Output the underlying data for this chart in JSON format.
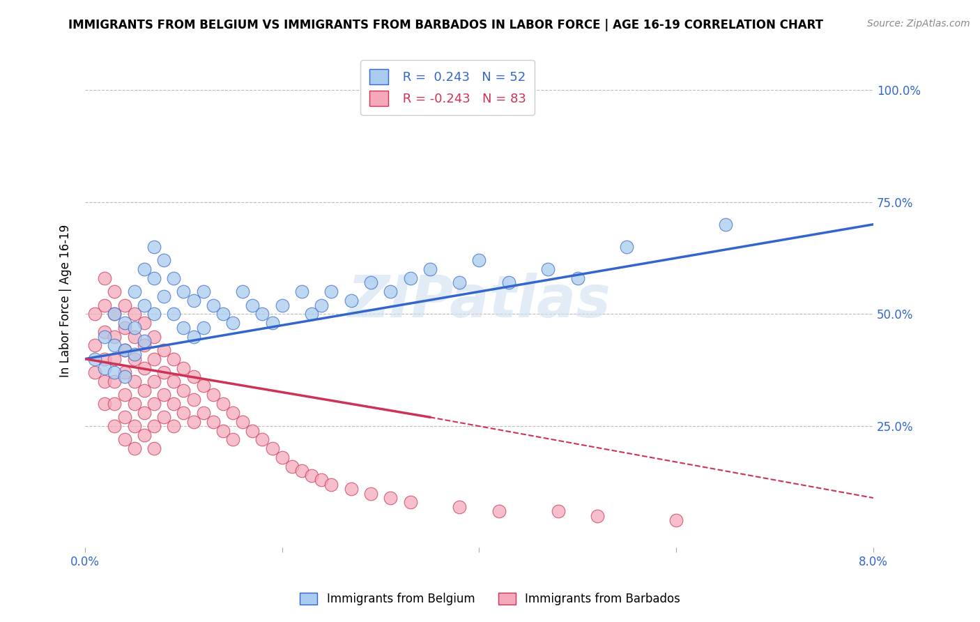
{
  "title": "IMMIGRANTS FROM BELGIUM VS IMMIGRANTS FROM BARBADOS IN LABOR FORCE | AGE 16-19 CORRELATION CHART",
  "source_text": "Source: ZipAtlas.com",
  "ylabel": "In Labor Force | Age 16-19",
  "xlim": [
    0.0,
    0.08
  ],
  "ylim": [
    -0.02,
    1.08
  ],
  "belgium_color": "#aaccee",
  "barbados_color": "#f5aabb",
  "belgium_line_color": "#3366cc",
  "barbados_line_color": "#cc3355",
  "belgium_R": 0.243,
  "belgium_N": 52,
  "barbados_R": -0.243,
  "barbados_N": 83,
  "watermark": "ZIPatlas",
  "background_color": "#ffffff",
  "grid_color": "#bbbbbb",
  "belgium_x": [
    0.001,
    0.002,
    0.002,
    0.003,
    0.003,
    0.003,
    0.004,
    0.004,
    0.004,
    0.005,
    0.005,
    0.005,
    0.006,
    0.006,
    0.006,
    0.007,
    0.007,
    0.007,
    0.008,
    0.008,
    0.009,
    0.009,
    0.01,
    0.01,
    0.011,
    0.011,
    0.012,
    0.012,
    0.013,
    0.014,
    0.015,
    0.016,
    0.017,
    0.018,
    0.019,
    0.02,
    0.022,
    0.023,
    0.024,
    0.025,
    0.027,
    0.029,
    0.031,
    0.033,
    0.035,
    0.038,
    0.04,
    0.043,
    0.047,
    0.05,
    0.055,
    0.065
  ],
  "belgium_y": [
    0.4,
    0.45,
    0.38,
    0.5,
    0.43,
    0.37,
    0.48,
    0.42,
    0.36,
    0.55,
    0.47,
    0.41,
    0.6,
    0.52,
    0.44,
    0.65,
    0.58,
    0.5,
    0.62,
    0.54,
    0.58,
    0.5,
    0.55,
    0.47,
    0.53,
    0.45,
    0.55,
    0.47,
    0.52,
    0.5,
    0.48,
    0.55,
    0.52,
    0.5,
    0.48,
    0.52,
    0.55,
    0.5,
    0.52,
    0.55,
    0.53,
    0.57,
    0.55,
    0.58,
    0.6,
    0.57,
    0.62,
    0.57,
    0.6,
    0.58,
    0.65,
    0.7
  ],
  "barbados_x": [
    0.001,
    0.001,
    0.001,
    0.002,
    0.002,
    0.002,
    0.002,
    0.002,
    0.002,
    0.003,
    0.003,
    0.003,
    0.003,
    0.003,
    0.003,
    0.003,
    0.004,
    0.004,
    0.004,
    0.004,
    0.004,
    0.004,
    0.004,
    0.005,
    0.005,
    0.005,
    0.005,
    0.005,
    0.005,
    0.005,
    0.006,
    0.006,
    0.006,
    0.006,
    0.006,
    0.006,
    0.007,
    0.007,
    0.007,
    0.007,
    0.007,
    0.007,
    0.008,
    0.008,
    0.008,
    0.008,
    0.009,
    0.009,
    0.009,
    0.009,
    0.01,
    0.01,
    0.01,
    0.011,
    0.011,
    0.011,
    0.012,
    0.012,
    0.013,
    0.013,
    0.014,
    0.014,
    0.015,
    0.015,
    0.016,
    0.017,
    0.018,
    0.019,
    0.02,
    0.021,
    0.022,
    0.023,
    0.024,
    0.025,
    0.027,
    0.029,
    0.031,
    0.033,
    0.038,
    0.042,
    0.048,
    0.052,
    0.06
  ],
  "barbados_y": [
    0.5,
    0.43,
    0.37,
    0.58,
    0.52,
    0.46,
    0.4,
    0.35,
    0.3,
    0.55,
    0.5,
    0.45,
    0.4,
    0.35,
    0.3,
    0.25,
    0.52,
    0.47,
    0.42,
    0.37,
    0.32,
    0.27,
    0.22,
    0.5,
    0.45,
    0.4,
    0.35,
    0.3,
    0.25,
    0.2,
    0.48,
    0.43,
    0.38,
    0.33,
    0.28,
    0.23,
    0.45,
    0.4,
    0.35,
    0.3,
    0.25,
    0.2,
    0.42,
    0.37,
    0.32,
    0.27,
    0.4,
    0.35,
    0.3,
    0.25,
    0.38,
    0.33,
    0.28,
    0.36,
    0.31,
    0.26,
    0.34,
    0.28,
    0.32,
    0.26,
    0.3,
    0.24,
    0.28,
    0.22,
    0.26,
    0.24,
    0.22,
    0.2,
    0.18,
    0.16,
    0.15,
    0.14,
    0.13,
    0.12,
    0.11,
    0.1,
    0.09,
    0.08,
    0.07,
    0.06,
    0.06,
    0.05,
    0.04
  ],
  "bel_line_x0": 0.0,
  "bel_line_y0": 0.4,
  "bel_line_x1": 0.08,
  "bel_line_y1": 0.7,
  "bar_line_solid_x0": 0.0,
  "bar_line_solid_y0": 0.4,
  "bar_line_solid_x1": 0.035,
  "bar_line_solid_y1": 0.27,
  "bar_line_dash_x0": 0.035,
  "bar_line_dash_y0": 0.27,
  "bar_line_dash_x1": 0.08,
  "bar_line_dash_y1": 0.09
}
